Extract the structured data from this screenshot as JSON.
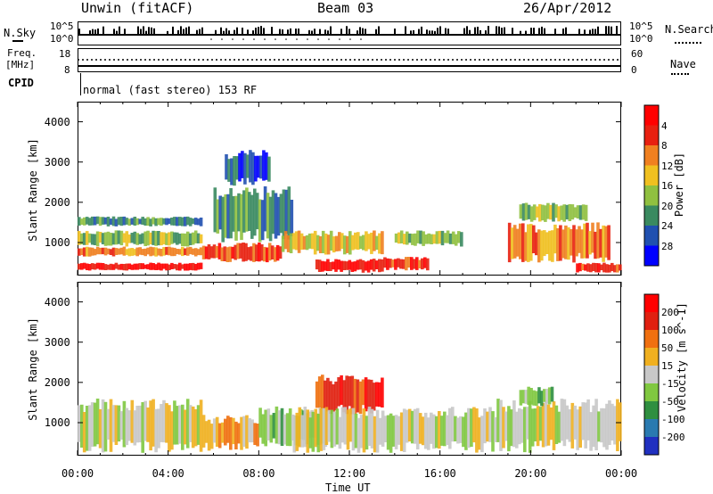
{
  "header": {
    "station": "Unwin (fitACF)",
    "beam": "Beam 03",
    "date": "26/Apr/2012"
  },
  "status": {
    "nsky_label": "N.Sky",
    "nsky_ticks": [
      "10^5",
      "10^0"
    ],
    "nsearch_label": "N.Search",
    "nsearch_ticks": [
      "10^5",
      "10^0"
    ],
    "freq_label": "Freq.",
    "freq_unit": "[MHz]",
    "freq_ticks": [
      "18",
      "8"
    ],
    "nave_label": "Nave",
    "nave_ticks": [
      "60",
      "0"
    ],
    "cpid_label": "CPID",
    "cpid_text": "normal (fast stereo) 153 RF"
  },
  "x_axis": {
    "title": "Time UT",
    "ticks": [
      "00:00",
      "04:00",
      "08:00",
      "12:00",
      "16:00",
      "20:00",
      "00:00"
    ]
  },
  "chart_data": [
    {
      "type": "heatmap",
      "title": "",
      "xlabel": "Time UT",
      "ylabel": "Slant Range [km]",
      "colorbar_label": "Power [dB]",
      "xlim": [
        0,
        24
      ],
      "ylim": [
        180,
        4500
      ],
      "y_ticks": [
        1000,
        2000,
        3000,
        4000
      ],
      "colorbar_ticks": [
        4,
        8,
        12,
        16,
        20,
        24,
        28
      ],
      "colorbar_colors": [
        "#0000ff",
        "#2050b0",
        "#3a8a60",
        "#90c040",
        "#f0c020",
        "#f08020",
        "#e82010",
        "#ff0000"
      ],
      "bands": [
        {
          "t": [
            0.0,
            5.5
          ],
          "r": [
            300,
            500
          ],
          "level": 7
        },
        {
          "t": [
            0.0,
            5.5
          ],
          "r": [
            650,
            900
          ],
          "level": 5
        },
        {
          "t": [
            0.0,
            5.5
          ],
          "r": [
            900,
            1300
          ],
          "level": 3
        },
        {
          "t": [
            0.0,
            5.5
          ],
          "r": [
            1400,
            1650
          ],
          "level": 2
        },
        {
          "t": [
            5.5,
            9.0
          ],
          "r": [
            500,
            1000
          ],
          "level": 6
        },
        {
          "t": [
            6.0,
            9.5
          ],
          "r": [
            1000,
            2400
          ],
          "level": 2
        },
        {
          "t": [
            6.5,
            8.5
          ],
          "r": [
            2400,
            3300
          ],
          "level": 1
        },
        {
          "t": [
            9.0,
            13.5
          ],
          "r": [
            700,
            1300
          ],
          "level": 4
        },
        {
          "t": [
            10.5,
            13.5
          ],
          "r": [
            250,
            600
          ],
          "level": 7
        },
        {
          "t": [
            13.5,
            15.5
          ],
          "r": [
            300,
            650
          ],
          "level": 6
        },
        {
          "t": [
            14.0,
            17.0
          ],
          "r": [
            900,
            1300
          ],
          "level": 3
        },
        {
          "t": [
            19.0,
            23.5
          ],
          "r": [
            500,
            1500
          ],
          "level": 5
        },
        {
          "t": [
            19.5,
            22.5
          ],
          "r": [
            1500,
            2000
          ],
          "level": 3
        },
        {
          "t": [
            22.0,
            24.0
          ],
          "r": [
            250,
            500
          ],
          "level": 6
        }
      ]
    },
    {
      "type": "heatmap",
      "title": "",
      "xlabel": "Time UT",
      "ylabel": "Slant Range [km]",
      "colorbar_label": "Velocity [m s^-1]",
      "xlim": [
        0,
        24
      ],
      "ylim": [
        180,
        4500
      ],
      "y_ticks": [
        1000,
        2000,
        3000,
        4000
      ],
      "colorbar_ticks": [
        200,
        100,
        50,
        15,
        -15,
        -50,
        -100,
        -200
      ],
      "colorbar_colors": [
        "#2030c0",
        "#2a7ab0",
        "#2f8f40",
        "#80c840",
        "#c8c8c8",
        "#f0b020",
        "#f07010",
        "#e02010",
        "#ff0000"
      ],
      "bands": [
        {
          "t": [
            0.0,
            5.5
          ],
          "r": [
            250,
            1600
          ],
          "level": 4
        },
        {
          "t": [
            5.5,
            8.0
          ],
          "r": [
            300,
            1200
          ],
          "level": 5
        },
        {
          "t": [
            8.0,
            11.0
          ],
          "r": [
            400,
            1400
          ],
          "level": 3
        },
        {
          "t": [
            10.5,
            13.5
          ],
          "r": [
            1200,
            2200
          ],
          "level": 7
        },
        {
          "t": [
            9.5,
            18.5
          ],
          "r": [
            250,
            1400
          ],
          "level": 4
        },
        {
          "t": [
            18.5,
            24.0
          ],
          "r": [
            250,
            1600
          ],
          "level": 4
        },
        {
          "t": [
            19.5,
            21.0
          ],
          "r": [
            1400,
            1900
          ],
          "level": 3
        }
      ]
    }
  ]
}
